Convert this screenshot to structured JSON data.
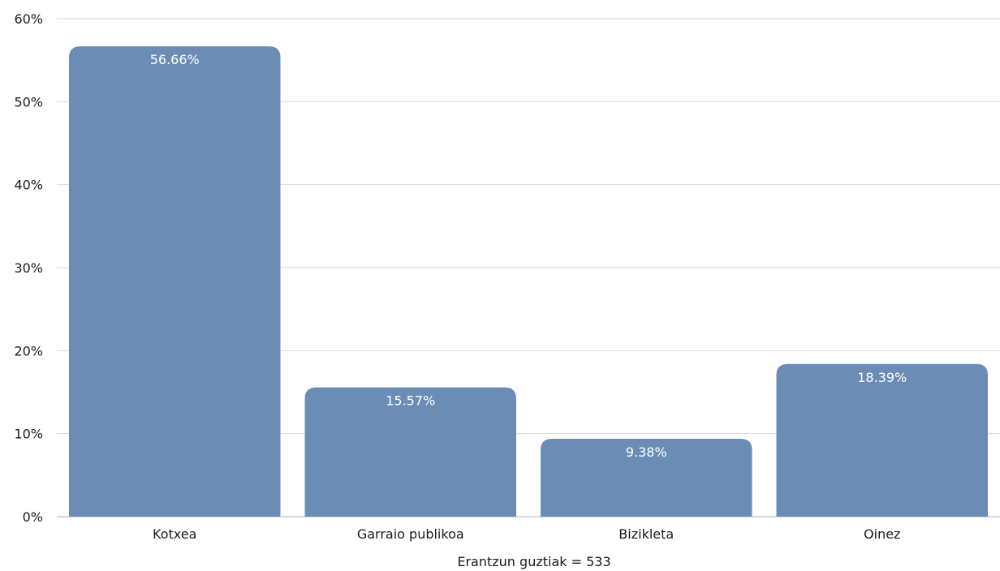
{
  "chart_data": {
    "type": "bar",
    "categories": [
      "Kotxea",
      "Garraio publikoa",
      "Bizikleta",
      "Oinez"
    ],
    "values": [
      56.66,
      15.57,
      9.38,
      18.39
    ],
    "data_labels": [
      "56.66%",
      "15.57%",
      "9.38%",
      "18.39%"
    ],
    "title": "",
    "xlabel": "Erantzun guztiak = 533",
    "ylabel": "",
    "ylim": [
      0,
      60
    ],
    "yticks": [
      0,
      10,
      20,
      30,
      40,
      50,
      60
    ],
    "ytick_labels": [
      "0%",
      "10%",
      "20%",
      "30%",
      "40%",
      "50%",
      "60%"
    ],
    "grid": true,
    "legend": "none",
    "bar_color": "#6b8db5"
  }
}
